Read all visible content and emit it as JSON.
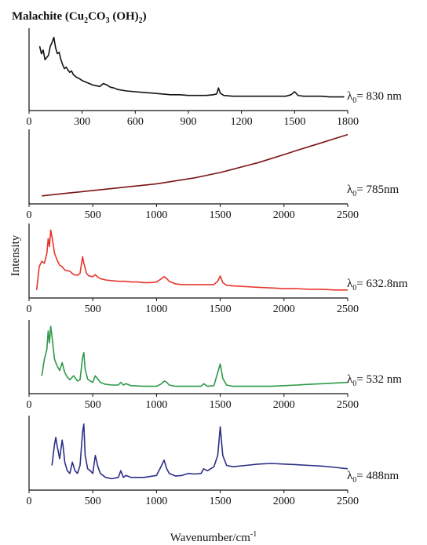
{
  "title": {
    "prefix": "Malachite (Cu",
    "sub1": "2",
    "mid1": "CO",
    "sub2": "3",
    "mid2": " (OH)",
    "sub3": "2",
    "suffix": ")"
  },
  "ylabel": "Intensity",
  "xlabel": {
    "text": "Wavenumber/cm",
    "sup": "-1"
  },
  "chart_data": [
    {
      "type": "line",
      "series": [
        {
          "name": "λ0 = 830 nm",
          "color": "#111111"
        }
      ],
      "xlim": [
        0,
        1800
      ],
      "xticks": [
        0,
        300,
        600,
        900,
        1200,
        1500,
        1800
      ],
      "lambda_text": "= 830 nm",
      "x": [
        60,
        70,
        80,
        90,
        100,
        110,
        120,
        130,
        140,
        150,
        160,
        170,
        180,
        190,
        200,
        210,
        220,
        230,
        240,
        250,
        260,
        270,
        280,
        300,
        320,
        340,
        360,
        380,
        400,
        420,
        440,
        460,
        480,
        500,
        550,
        600,
        650,
        700,
        750,
        800,
        850,
        900,
        950,
        1000,
        1040,
        1060,
        1070,
        1080,
        1100,
        1150,
        1200,
        1250,
        1300,
        1350,
        1400,
        1450,
        1480,
        1500,
        1520,
        1550,
        1600,
        1650,
        1700,
        1750,
        1780
      ],
      "y": [
        0.8,
        0.7,
        0.75,
        0.62,
        0.65,
        0.68,
        0.8,
        0.85,
        0.92,
        0.78,
        0.7,
        0.72,
        0.62,
        0.55,
        0.5,
        0.52,
        0.48,
        0.45,
        0.47,
        0.42,
        0.4,
        0.38,
        0.37,
        0.34,
        0.32,
        0.3,
        0.28,
        0.27,
        0.26,
        0.3,
        0.28,
        0.25,
        0.24,
        0.22,
        0.2,
        0.19,
        0.18,
        0.17,
        0.16,
        0.15,
        0.15,
        0.14,
        0.14,
        0.14,
        0.15,
        0.16,
        0.24,
        0.17,
        0.14,
        0.13,
        0.13,
        0.13,
        0.13,
        0.13,
        0.13,
        0.13,
        0.15,
        0.19,
        0.14,
        0.13,
        0.13,
        0.13,
        0.12,
        0.12,
        0.12
      ]
    },
    {
      "type": "line",
      "series": [
        {
          "name": "λ0 = 785nm",
          "color": "#7b1416"
        }
      ],
      "xlim": [
        0,
        2500
      ],
      "xticks": [
        0,
        500,
        1000,
        1500,
        2000,
        2500
      ],
      "lambda_text": "= 785nm",
      "x": [
        100,
        200,
        300,
        400,
        500,
        600,
        700,
        800,
        900,
        1000,
        1100,
        1200,
        1300,
        1400,
        1500,
        1600,
        1700,
        1800,
        1900,
        2000,
        2100,
        2200,
        2300,
        2400,
        2500
      ],
      "y": [
        0.05,
        0.07,
        0.09,
        0.11,
        0.13,
        0.15,
        0.17,
        0.19,
        0.21,
        0.23,
        0.26,
        0.29,
        0.32,
        0.36,
        0.4,
        0.45,
        0.5,
        0.55,
        0.61,
        0.67,
        0.73,
        0.79,
        0.85,
        0.91,
        0.97
      ]
    },
    {
      "type": "line",
      "series": [
        {
          "name": "λ0 = 632.8nm",
          "color": "#e8352c"
        }
      ],
      "xlim": [
        0,
        2500
      ],
      "xticks": [
        0,
        500,
        1000,
        1500,
        2000,
        2500
      ],
      "lambda_text": "= 632.8nm",
      "x": [
        60,
        80,
        100,
        120,
        140,
        150,
        160,
        170,
        180,
        190,
        200,
        220,
        240,
        260,
        280,
        300,
        320,
        350,
        380,
        400,
        420,
        430,
        440,
        450,
        470,
        500,
        520,
        540,
        560,
        600,
        650,
        700,
        750,
        800,
        850,
        900,
        950,
        1000,
        1040,
        1060,
        1080,
        1100,
        1150,
        1200,
        1250,
        1300,
        1350,
        1400,
        1450,
        1480,
        1500,
        1520,
        1550,
        1600,
        1700,
        1800,
        1900,
        2000,
        2100,
        2200,
        2300,
        2400,
        2500
      ],
      "y": [
        0.05,
        0.4,
        0.48,
        0.45,
        0.6,
        0.82,
        0.7,
        0.95,
        0.85,
        0.72,
        0.6,
        0.5,
        0.42,
        0.4,
        0.35,
        0.34,
        0.33,
        0.28,
        0.27,
        0.3,
        0.55,
        0.45,
        0.38,
        0.3,
        0.26,
        0.25,
        0.28,
        0.24,
        0.22,
        0.2,
        0.19,
        0.18,
        0.18,
        0.17,
        0.17,
        0.16,
        0.16,
        0.17,
        0.22,
        0.25,
        0.22,
        0.18,
        0.14,
        0.13,
        0.13,
        0.13,
        0.13,
        0.13,
        0.13,
        0.18,
        0.26,
        0.16,
        0.12,
        0.11,
        0.1,
        0.09,
        0.08,
        0.07,
        0.07,
        0.06,
        0.06,
        0.05,
        0.05
      ]
    },
    {
      "type": "line",
      "series": [
        {
          "name": "λ0 = 532 nm",
          "color": "#2c9a47"
        }
      ],
      "xlim": [
        0,
        2500
      ],
      "xticks": [
        0,
        500,
        1000,
        1500,
        2000,
        2500
      ],
      "lambda_text": "= 532 nm",
      "x": [
        100,
        120,
        140,
        150,
        160,
        170,
        180,
        190,
        200,
        220,
        240,
        260,
        280,
        300,
        320,
        350,
        380,
        400,
        420,
        430,
        440,
        460,
        480,
        500,
        520,
        540,
        560,
        600,
        650,
        700,
        720,
        740,
        760,
        800,
        900,
        1000,
        1040,
        1060,
        1080,
        1100,
        1150,
        1200,
        1250,
        1300,
        1350,
        1370,
        1400,
        1450,
        1480,
        1500,
        1520,
        1550,
        1600,
        1700,
        1800,
        1900,
        2000,
        2100,
        2200,
        2300,
        2400,
        2500
      ],
      "y": [
        0.2,
        0.45,
        0.6,
        0.88,
        0.7,
        0.95,
        0.8,
        0.62,
        0.45,
        0.35,
        0.28,
        0.4,
        0.25,
        0.18,
        0.14,
        0.2,
        0.12,
        0.14,
        0.48,
        0.55,
        0.3,
        0.15,
        0.12,
        0.1,
        0.2,
        0.15,
        0.1,
        0.07,
        0.06,
        0.06,
        0.1,
        0.06,
        0.08,
        0.05,
        0.04,
        0.04,
        0.08,
        0.12,
        0.1,
        0.06,
        0.04,
        0.04,
        0.04,
        0.04,
        0.04,
        0.08,
        0.04,
        0.05,
        0.25,
        0.38,
        0.16,
        0.06,
        0.04,
        0.04,
        0.04,
        0.04,
        0.05,
        0.06,
        0.07,
        0.08,
        0.09,
        0.1
      ]
    },
    {
      "type": "line",
      "series": [
        {
          "name": "λ0 = 488nm",
          "color": "#2b2f85"
        }
      ],
      "xlim": [
        0,
        2500
      ],
      "xticks": [
        0,
        500,
        1000,
        1500,
        2000,
        2500
      ],
      "lambda_text": "= 488nm",
      "x": [
        180,
        200,
        210,
        220,
        240,
        260,
        270,
        280,
        300,
        320,
        340,
        360,
        380,
        400,
        420,
        430,
        440,
        460,
        480,
        500,
        520,
        540,
        560,
        600,
        650,
        700,
        720,
        740,
        760,
        800,
        900,
        1000,
        1040,
        1060,
        1080,
        1100,
        1150,
        1200,
        1250,
        1300,
        1350,
        1370,
        1400,
        1450,
        1480,
        1500,
        1520,
        1550,
        1600,
        1700,
        1800,
        1900,
        2000,
        2100,
        2200,
        2300,
        2400,
        2500
      ],
      "y": [
        0.3,
        0.62,
        0.72,
        0.6,
        0.4,
        0.68,
        0.55,
        0.35,
        0.22,
        0.18,
        0.35,
        0.22,
        0.18,
        0.3,
        0.8,
        0.92,
        0.45,
        0.25,
        0.22,
        0.18,
        0.45,
        0.28,
        0.18,
        0.12,
        0.1,
        0.12,
        0.22,
        0.12,
        0.15,
        0.12,
        0.12,
        0.15,
        0.3,
        0.38,
        0.25,
        0.18,
        0.14,
        0.15,
        0.18,
        0.17,
        0.18,
        0.25,
        0.22,
        0.28,
        0.45,
        0.88,
        0.45,
        0.3,
        0.28,
        0.3,
        0.32,
        0.33,
        0.32,
        0.31,
        0.3,
        0.29,
        0.27,
        0.25
      ]
    }
  ]
}
